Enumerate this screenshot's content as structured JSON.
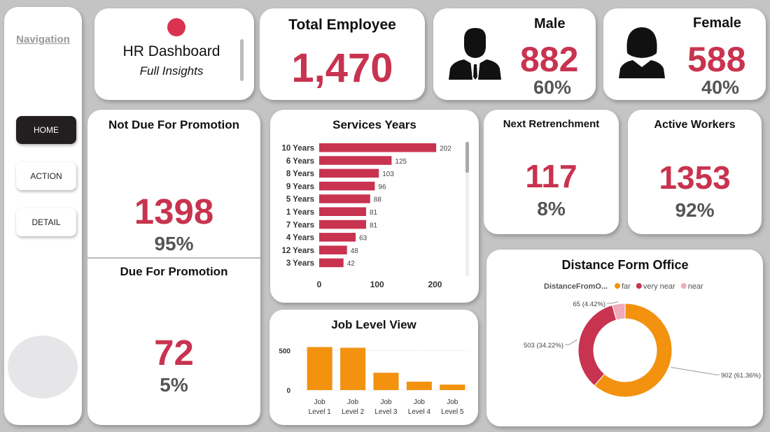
{
  "nav": {
    "title": "Navigation",
    "buttons": [
      {
        "label": "HOME",
        "active": true
      },
      {
        "label": "ACTION",
        "active": false
      },
      {
        "label": "DETAIL",
        "active": false
      }
    ]
  },
  "header": {
    "title": "HR Dashboard",
    "subtitle": "Full Insights",
    "accent": "#d9334f"
  },
  "total": {
    "label": "Total Employee",
    "value": "1,470"
  },
  "male": {
    "label": "Male",
    "value": "882",
    "pct": "60%"
  },
  "female": {
    "label": "Female",
    "value": "588",
    "pct": "40%"
  },
  "not_due": {
    "label": "Not Due For Promotion",
    "value": "1398",
    "pct": "95%"
  },
  "due": {
    "label": "Due For Promotion",
    "value": "72",
    "pct": "5%"
  },
  "retrench": {
    "label": "Next Retrenchment",
    "value": "117",
    "pct": "8%"
  },
  "active": {
    "label": "Active Workers",
    "value": "1353",
    "pct": "92%"
  },
  "colors": {
    "red": "#c8334f",
    "orange": "#f2920f",
    "pink": "#f0aab8",
    "text": "#555555"
  },
  "chart_data": [
    {
      "type": "bar",
      "orientation": "horizontal",
      "title": "Services Years",
      "categories": [
        "10 Years",
        "6 Years",
        "8 Years",
        "9 Years",
        "5 Years",
        "1 Years",
        "7 Years",
        "4 Years",
        "12 Years",
        "3 Years"
      ],
      "values": [
        202,
        125,
        103,
        96,
        88,
        81,
        81,
        63,
        48,
        42
      ],
      "xlim": [
        0,
        220
      ],
      "xticks": [
        "0",
        "100",
        "200"
      ],
      "color": "#c8334f"
    },
    {
      "type": "bar",
      "title": "Job Level View",
      "categories": [
        "Job Level 1",
        "Job Level 2",
        "Job Level 3",
        "Job Level 4",
        "Job Level 5"
      ],
      "values": [
        543,
        534,
        218,
        106,
        69
      ],
      "ylim": [
        0,
        600
      ],
      "yticks": [
        "0",
        "500"
      ],
      "color": "#f2920f"
    },
    {
      "type": "pie",
      "variant": "donut",
      "title": "Distance Form Office",
      "legend_title": "DistanceFromO...",
      "slices": [
        {
          "name": "far",
          "value": 902,
          "label": "902 (61.36%)",
          "color": "#f2920f"
        },
        {
          "name": "very near",
          "value": 503,
          "label": "503 (34.22%)",
          "color": "#c8334f"
        },
        {
          "name": "near",
          "value": 65,
          "label": "65 (4.42%)",
          "color": "#f0aab8"
        }
      ]
    }
  ]
}
